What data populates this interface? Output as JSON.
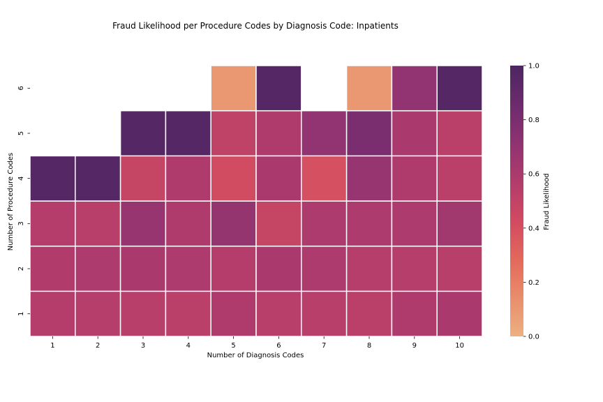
{
  "chart_data": {
    "type": "heatmap",
    "title": "Fraud Likelihood per Procedure Codes by Diagnosis Code: Inpatients",
    "xlabel": "Number of Diagnosis Codes",
    "ylabel": "Number of Procedure Codes",
    "x_categories": [
      "1",
      "2",
      "3",
      "4",
      "5",
      "6",
      "7",
      "8",
      "9",
      "10"
    ],
    "y_categories": [
      "1",
      "2",
      "3",
      "4",
      "5",
      "6"
    ],
    "values": [
      [
        0.56,
        0.55,
        0.54,
        0.53,
        0.58,
        0.54,
        0.54,
        0.53,
        0.58,
        0.6
      ],
      [
        0.57,
        0.59,
        0.6,
        0.59,
        0.56,
        0.6,
        0.59,
        0.55,
        0.55,
        0.54
      ],
      [
        0.56,
        0.54,
        0.68,
        0.58,
        0.69,
        0.48,
        0.59,
        0.59,
        0.59,
        0.64
      ],
      [
        0.96,
        0.96,
        0.48,
        0.58,
        0.42,
        0.6,
        0.4,
        0.68,
        0.58,
        0.53
      ],
      [
        null,
        null,
        0.96,
        0.96,
        0.51,
        0.58,
        0.7,
        0.8,
        0.6,
        0.53
      ],
      [
        null,
        null,
        null,
        null,
        0.1,
        0.96,
        null,
        0.1,
        0.7,
        0.96
      ]
    ],
    "colorbar": {
      "label": "Fraud Likelihood",
      "min": 0.0,
      "max": 1.0,
      "ticks": [
        "0.0",
        "0.2",
        "0.4",
        "0.6",
        "0.8",
        "1.0"
      ],
      "colormap": "flare",
      "colors": [
        "#edb081",
        "#e98d6b",
        "#e3685c",
        "#d14a61",
        "#b13c6c",
        "#8f3371",
        "#6c2b6d",
        "#4c2661"
      ]
    },
    "grid": false,
    "cell_border_color": "#ffffff"
  }
}
